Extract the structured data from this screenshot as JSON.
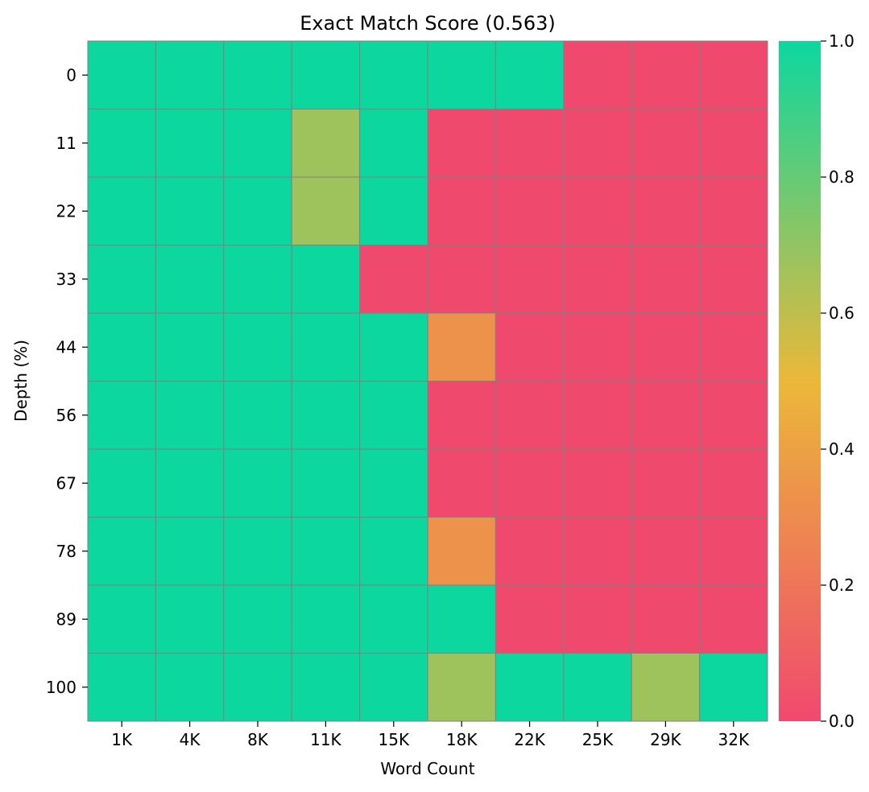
{
  "chart_data": {
    "type": "heatmap",
    "title": "Exact Match Score (0.563)",
    "xlabel": "Word Count",
    "ylabel": "Depth (%)",
    "x_categories": [
      "1K",
      "4K",
      "8K",
      "11K",
      "15K",
      "18K",
      "22K",
      "25K",
      "29K",
      "32K"
    ],
    "y_categories": [
      "0",
      "11",
      "22",
      "33",
      "44",
      "56",
      "67",
      "78",
      "89",
      "100"
    ],
    "values": [
      [
        1,
        1,
        1,
        1,
        1,
        1,
        1,
        0,
        0,
        0
      ],
      [
        1,
        1,
        1,
        0.67,
        1,
        0,
        0,
        0,
        0,
        0
      ],
      [
        1,
        1,
        1,
        0.67,
        1,
        0,
        0,
        0,
        0,
        0
      ],
      [
        1,
        1,
        1,
        1,
        0,
        0,
        0,
        0,
        0,
        0
      ],
      [
        1,
        1,
        1,
        1,
        1,
        0.33,
        0,
        0,
        0,
        0
      ],
      [
        1,
        1,
        1,
        1,
        1,
        0,
        0,
        0,
        0,
        0
      ],
      [
        1,
        1,
        1,
        1,
        1,
        0,
        0,
        0,
        0,
        0
      ],
      [
        1,
        1,
        1,
        1,
        1,
        0.33,
        0,
        0,
        0,
        0
      ],
      [
        1,
        1,
        1,
        1,
        1,
        1,
        0,
        0,
        0,
        0
      ],
      [
        1,
        1,
        1,
        1,
        1,
        0.67,
        1,
        1,
        0.67,
        1
      ]
    ],
    "colorbar": {
      "min": 0,
      "max": 1,
      "ticks": [
        "0.0",
        "0.2",
        "0.4",
        "0.6",
        "0.8",
        "1.0"
      ],
      "colors": [
        "#F0496E",
        "#EBB839",
        "#0CD79F"
      ]
    },
    "cell_border_color": "#808080"
  }
}
